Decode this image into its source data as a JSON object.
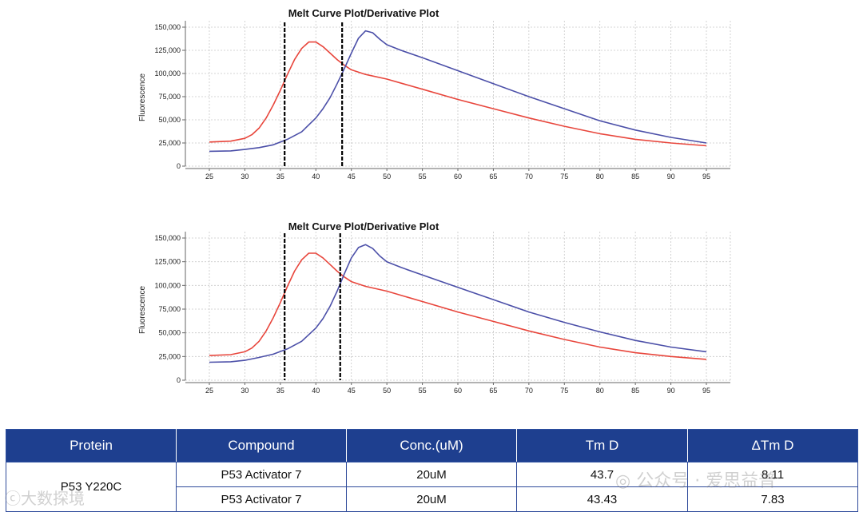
{
  "chart_data": [
    {
      "type": "line",
      "title": "Melt Curve Plot/Derivative Plot",
      "xlabel": "",
      "ylabel": "Fluorescence",
      "xlim": [
        25,
        95
      ],
      "ylim": [
        0,
        150000
      ],
      "xticks": [
        25,
        30,
        35,
        40,
        45,
        50,
        55,
        60,
        65,
        70,
        75,
        80,
        85,
        90,
        95
      ],
      "yticks": [
        0,
        25000,
        50000,
        75000,
        100000,
        125000,
        150000
      ],
      "ytick_labels": [
        "0",
        "25,000",
        "50,000",
        "75,000",
        "100,000",
        "125,000",
        "150,000"
      ],
      "vlines": [
        35.6,
        43.7
      ],
      "series": [
        {
          "name": "red",
          "color": "#e8463c",
          "x": [
            25,
            28,
            30,
            31,
            32,
            33,
            34,
            35,
            36,
            37,
            38,
            39,
            40,
            41,
            42,
            43,
            44,
            45,
            47,
            50,
            55,
            60,
            65,
            70,
            75,
            80,
            85,
            90,
            95
          ],
          "y": [
            26000,
            27000,
            30000,
            34000,
            41000,
            52000,
            66000,
            82000,
            99000,
            115000,
            127000,
            134000,
            134000,
            129000,
            122000,
            115000,
            109000,
            104000,
            99000,
            94000,
            83000,
            72000,
            62000,
            52000,
            43000,
            35000,
            29000,
            25000,
            22000
          ]
        },
        {
          "name": "blue",
          "color": "#4b4fa8",
          "x": [
            25,
            28,
            30,
            32,
            34,
            36,
            38,
            40,
            41,
            42,
            43,
            44,
            45,
            46,
            47,
            48,
            49,
            50,
            52,
            55,
            60,
            65,
            70,
            75,
            80,
            85,
            90,
            95
          ],
          "y": [
            16000,
            16500,
            18000,
            20000,
            23000,
            29000,
            37000,
            52000,
            62000,
            74000,
            89000,
            105000,
            122000,
            138000,
            146000,
            144000,
            137000,
            131000,
            125000,
            117000,
            103000,
            89000,
            75000,
            62000,
            49000,
            39000,
            31000,
            25000
          ]
        }
      ]
    },
    {
      "type": "line",
      "title": "Melt Curve Plot/Derivative Plot",
      "xlabel": "",
      "ylabel": "Fluorescence",
      "xlim": [
        25,
        95
      ],
      "ylim": [
        0,
        150000
      ],
      "xticks": [
        25,
        30,
        35,
        40,
        45,
        50,
        55,
        60,
        65,
        70,
        75,
        80,
        85,
        90,
        95
      ],
      "yticks": [
        0,
        25000,
        50000,
        75000,
        100000,
        125000,
        150000
      ],
      "ytick_labels": [
        "0",
        "25,000",
        "50,000",
        "75,000",
        "100,000",
        "125,000",
        "150,000"
      ],
      "vlines": [
        35.6,
        43.43
      ],
      "series": [
        {
          "name": "red",
          "color": "#e8463c",
          "x": [
            25,
            28,
            30,
            31,
            32,
            33,
            34,
            35,
            36,
            37,
            38,
            39,
            40,
            41,
            42,
            43,
            44,
            45,
            47,
            50,
            55,
            60,
            65,
            70,
            75,
            80,
            85,
            90,
            95
          ],
          "y": [
            26000,
            27000,
            30000,
            34000,
            41000,
            52000,
            66000,
            82000,
            99000,
            115000,
            127000,
            134000,
            134000,
            129000,
            122000,
            115000,
            109000,
            104000,
            99000,
            94000,
            83000,
            72000,
            62000,
            52000,
            43000,
            35000,
            29000,
            25000,
            22000
          ]
        },
        {
          "name": "blue",
          "color": "#4b4fa8",
          "x": [
            25,
            28,
            30,
            32,
            34,
            36,
            38,
            40,
            41,
            42,
            43,
            44,
            45,
            46,
            47,
            48,
            49,
            50,
            52,
            55,
            60,
            65,
            70,
            75,
            80,
            85,
            90,
            95
          ],
          "y": [
            19000,
            19500,
            21000,
            24000,
            27500,
            33000,
            41000,
            55000,
            65000,
            78000,
            94000,
            112000,
            129000,
            140000,
            143000,
            139000,
            131000,
            125000,
            119000,
            111000,
            98000,
            85000,
            72000,
            61000,
            51000,
            42000,
            35000,
            30000
          ]
        }
      ]
    }
  ],
  "table": {
    "headers": [
      "Protein",
      "Compound",
      "Conc.(uM)",
      "Tm D",
      "ΔTm D"
    ],
    "protein": "P53 Y220C",
    "rows": [
      {
        "compound": "P53 Activator 7",
        "conc": "20uM",
        "tm": "43.7",
        "dtm": "8.11"
      },
      {
        "compound": "P53 Activator 7",
        "conc": "20uM",
        "tm": "43.43",
        "dtm": "7.83"
      }
    ]
  },
  "watermarks": {
    "left": "大数探境",
    "right": "公众号 · 爱思益普"
  }
}
